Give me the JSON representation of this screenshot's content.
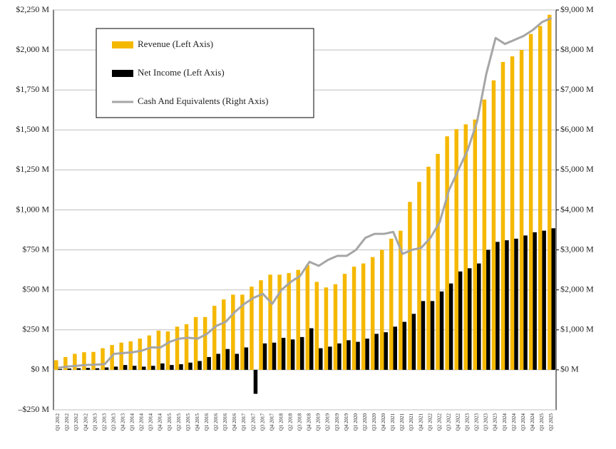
{
  "chart_data": {
    "type": "bar_line",
    "categories": [
      "Q1 2012",
      "Q2 2012",
      "Q3 2012",
      "Q4 2012",
      "Q1 2013",
      "Q2 2013",
      "Q3 2013",
      "Q4 2013",
      "Q1 2014",
      "Q2 2014",
      "Q3 2014",
      "Q4 2014",
      "Q1 2015",
      "Q2 2015",
      "Q3 2015",
      "Q4 2015",
      "Q1 2016",
      "Q2 2016",
      "Q3 2016",
      "Q4 2016",
      "Q1 2017",
      "Q2 2017",
      "Q3 2017",
      "Q4 2017",
      "Q1 2018",
      "Q2 2018",
      "Q3 2018",
      "Q4 2018",
      "Q1 2019",
      "Q2 2019",
      "Q3 2019",
      "Q4 2019",
      "Q1 2020",
      "Q2 2020",
      "Q3 2020",
      "Q4 2020",
      "Q1 2021",
      "Q2 2021",
      "Q3 2021",
      "Q4 2021",
      "Q1 2022",
      "Q2 2022",
      "Q3 2022",
      "Q4 2022",
      "Q1 2023",
      "Q2 2023",
      "Q3 2023",
      "Q4 2023",
      "Q1 2024",
      "Q2 2024",
      "Q3 2024",
      "Q4 2024",
      "Q1 2025",
      "Q2 2025"
    ],
    "series": [
      {
        "name": "Revenue (Left Axis)",
        "color": "#f5b800",
        "kind": "bar",
        "values": [
          60,
          80,
          100,
          110,
          112,
          135,
          155,
          170,
          178,
          195,
          215,
          245,
          240,
          270,
          285,
          330,
          330,
          400,
          440,
          470,
          470,
          520,
          560,
          595,
          595,
          605,
          625,
          655,
          550,
          515,
          535,
          600,
          645,
          665,
          705,
          750,
          820,
          870,
          1050,
          1175,
          1270,
          1350,
          1460,
          1505,
          1535,
          1565,
          1690,
          1810,
          1925,
          1960,
          2000,
          2100,
          2150,
          2220
        ]
      },
      {
        "name": "Net Income (Left Axis)",
        "color": "#000000",
        "kind": "bar",
        "values": [
          5,
          8,
          10,
          12,
          10,
          15,
          20,
          30,
          25,
          20,
          25,
          40,
          30,
          35,
          45,
          55,
          80,
          100,
          130,
          100,
          140,
          -150,
          165,
          170,
          200,
          190,
          205,
          260,
          135,
          145,
          165,
          185,
          175,
          195,
          225,
          235,
          270,
          300,
          350,
          430,
          430,
          490,
          540,
          615,
          635,
          665,
          750,
          800,
          810,
          820,
          840,
          860,
          870,
          885
        ]
      },
      {
        "name": "Cash And Equivalents (Right Axis)",
        "color": "#a6a6a6",
        "kind": "line",
        "axis": "y2",
        "values": [
          50,
          80,
          100,
          120,
          130,
          140,
          400,
          420,
          440,
          480,
          560,
          560,
          700,
          780,
          800,
          780,
          900,
          1100,
          1200,
          1450,
          1650,
          1800,
          1900,
          1650,
          2000,
          2200,
          2350,
          2700,
          2600,
          2750,
          2850,
          2850,
          3000,
          3300,
          3400,
          3400,
          3450,
          2900,
          3000,
          3050,
          3300,
          3700,
          4500,
          5000,
          5500,
          6200,
          7400,
          8300,
          8150,
          8250,
          8350,
          8500,
          8700,
          8800
        ]
      }
    ],
    "ylim": [
      -250,
      2250
    ],
    "yticks": [
      {
        "value": -250,
        "label": "–$250 M"
      },
      {
        "value": 0,
        "label": "$0 M"
      },
      {
        "value": 250,
        "label": "$250 M"
      },
      {
        "value": 500,
        "label": "$500 M"
      },
      {
        "value": 750,
        "label": "$750 M"
      },
      {
        "value": 1000,
        "label": "$1,000 M"
      },
      {
        "value": 1250,
        "label": "$1,250 M"
      },
      {
        "value": 1500,
        "label": "$1,500 M"
      },
      {
        "value": 1750,
        "label": "$1,750 M"
      },
      {
        "value": 2000,
        "label": "$2,000 M"
      },
      {
        "value": 2250,
        "label": "$2,250 M"
      }
    ],
    "y2lim": [
      -1000,
      9000
    ],
    "y2ticks": [
      {
        "value": 0,
        "label": "$0 M"
      },
      {
        "value": 1000,
        "label": "$1,000 M"
      },
      {
        "value": 2000,
        "label": "$2,000 M"
      },
      {
        "value": 3000,
        "label": "$3,000 M"
      },
      {
        "value": 4000,
        "label": "$4,000 M"
      },
      {
        "value": 5000,
        "label": "$5,000 M"
      },
      {
        "value": 6000,
        "label": "$6,000 M"
      },
      {
        "value": 7000,
        "label": "$7,000 M"
      },
      {
        "value": 8000,
        "label": "$8,000 M"
      },
      {
        "value": 9000,
        "label": "$9,000 M"
      }
    ],
    "grid": true
  }
}
